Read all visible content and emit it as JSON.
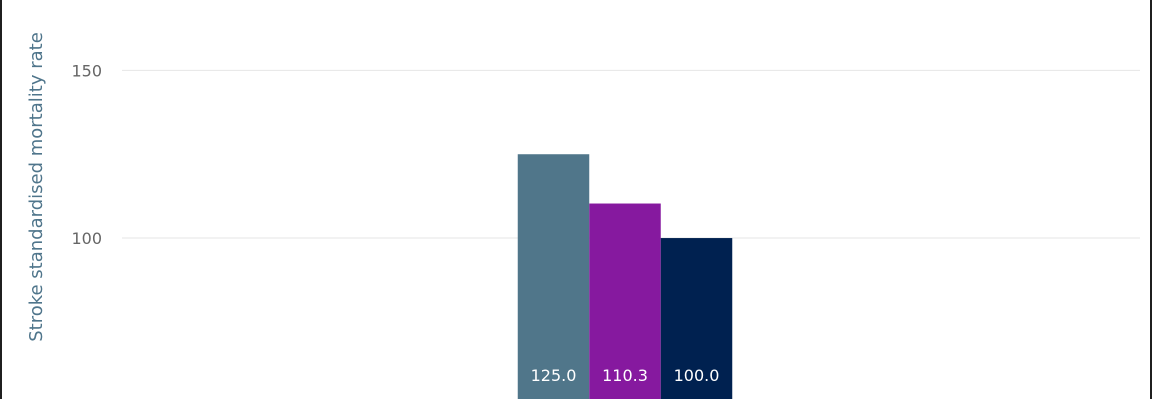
{
  "chart_data": {
    "type": "bar",
    "title": "",
    "xlabel": "",
    "ylabel": "Stroke standardised mortality rate",
    "categories": [
      ""
    ],
    "series": [
      {
        "values": [
          125.0
        ],
        "label": "125.0",
        "color": "#50768A"
      },
      {
        "values": [
          110.3
        ],
        "label": "110.3",
        "color": "#86199F"
      },
      {
        "values": [
          100.0
        ],
        "label": "100.0",
        "color": "#002150"
      }
    ],
    "y_ticks": [
      {
        "value": 100,
        "label": "100"
      },
      {
        "value": 150,
        "label": "150"
      }
    ],
    "ylim": [
      52,
      171
    ],
    "grid": true,
    "legend": "none"
  }
}
